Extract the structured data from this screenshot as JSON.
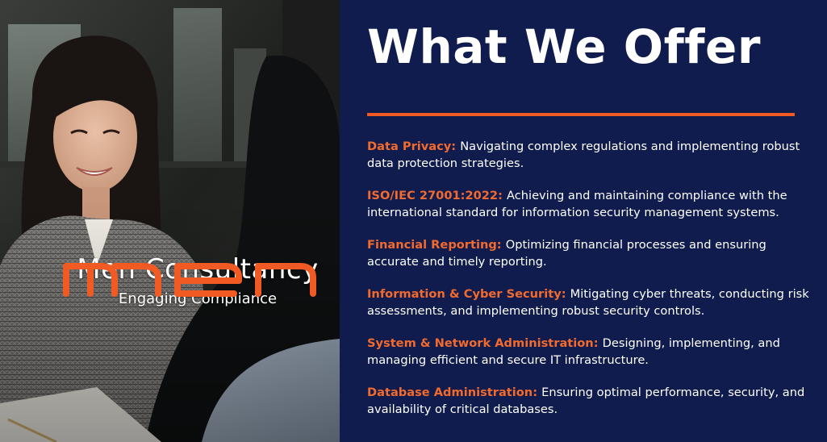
{
  "heading": "What We Offer",
  "brand": {
    "logo_text": "men",
    "name": "Men Consultancy",
    "tagline": "Engaging Compliance"
  },
  "colors": {
    "background": "#0f1c4d",
    "accent": "#f15a22",
    "title": "#f26a2e",
    "text": "#ffffff"
  },
  "offers": [
    {
      "title": "Data Privacy:",
      "description": "Navigating complex regulations and implementing robust data protection strategies."
    },
    {
      "title": "ISO/IEC 27001:2022:",
      "description": "Achieving and maintaining compliance with the international standard for information security management systems."
    },
    {
      "title": "Financial Reporting:",
      "description": "Optimizing financial processes and ensuring accurate and timely reporting."
    },
    {
      "title": "Information & Cyber Security:",
      "description": "Mitigating cyber threats, conducting risk assessments, and implementing robust security controls."
    },
    {
      "title": "System & Network Administration:",
      "description": "Designing, implementing, and managing efficient and secure IT infrastructure."
    },
    {
      "title": "Database Administration:",
      "description": "Ensuring optimal performance, security, and availability of critical databases."
    }
  ]
}
